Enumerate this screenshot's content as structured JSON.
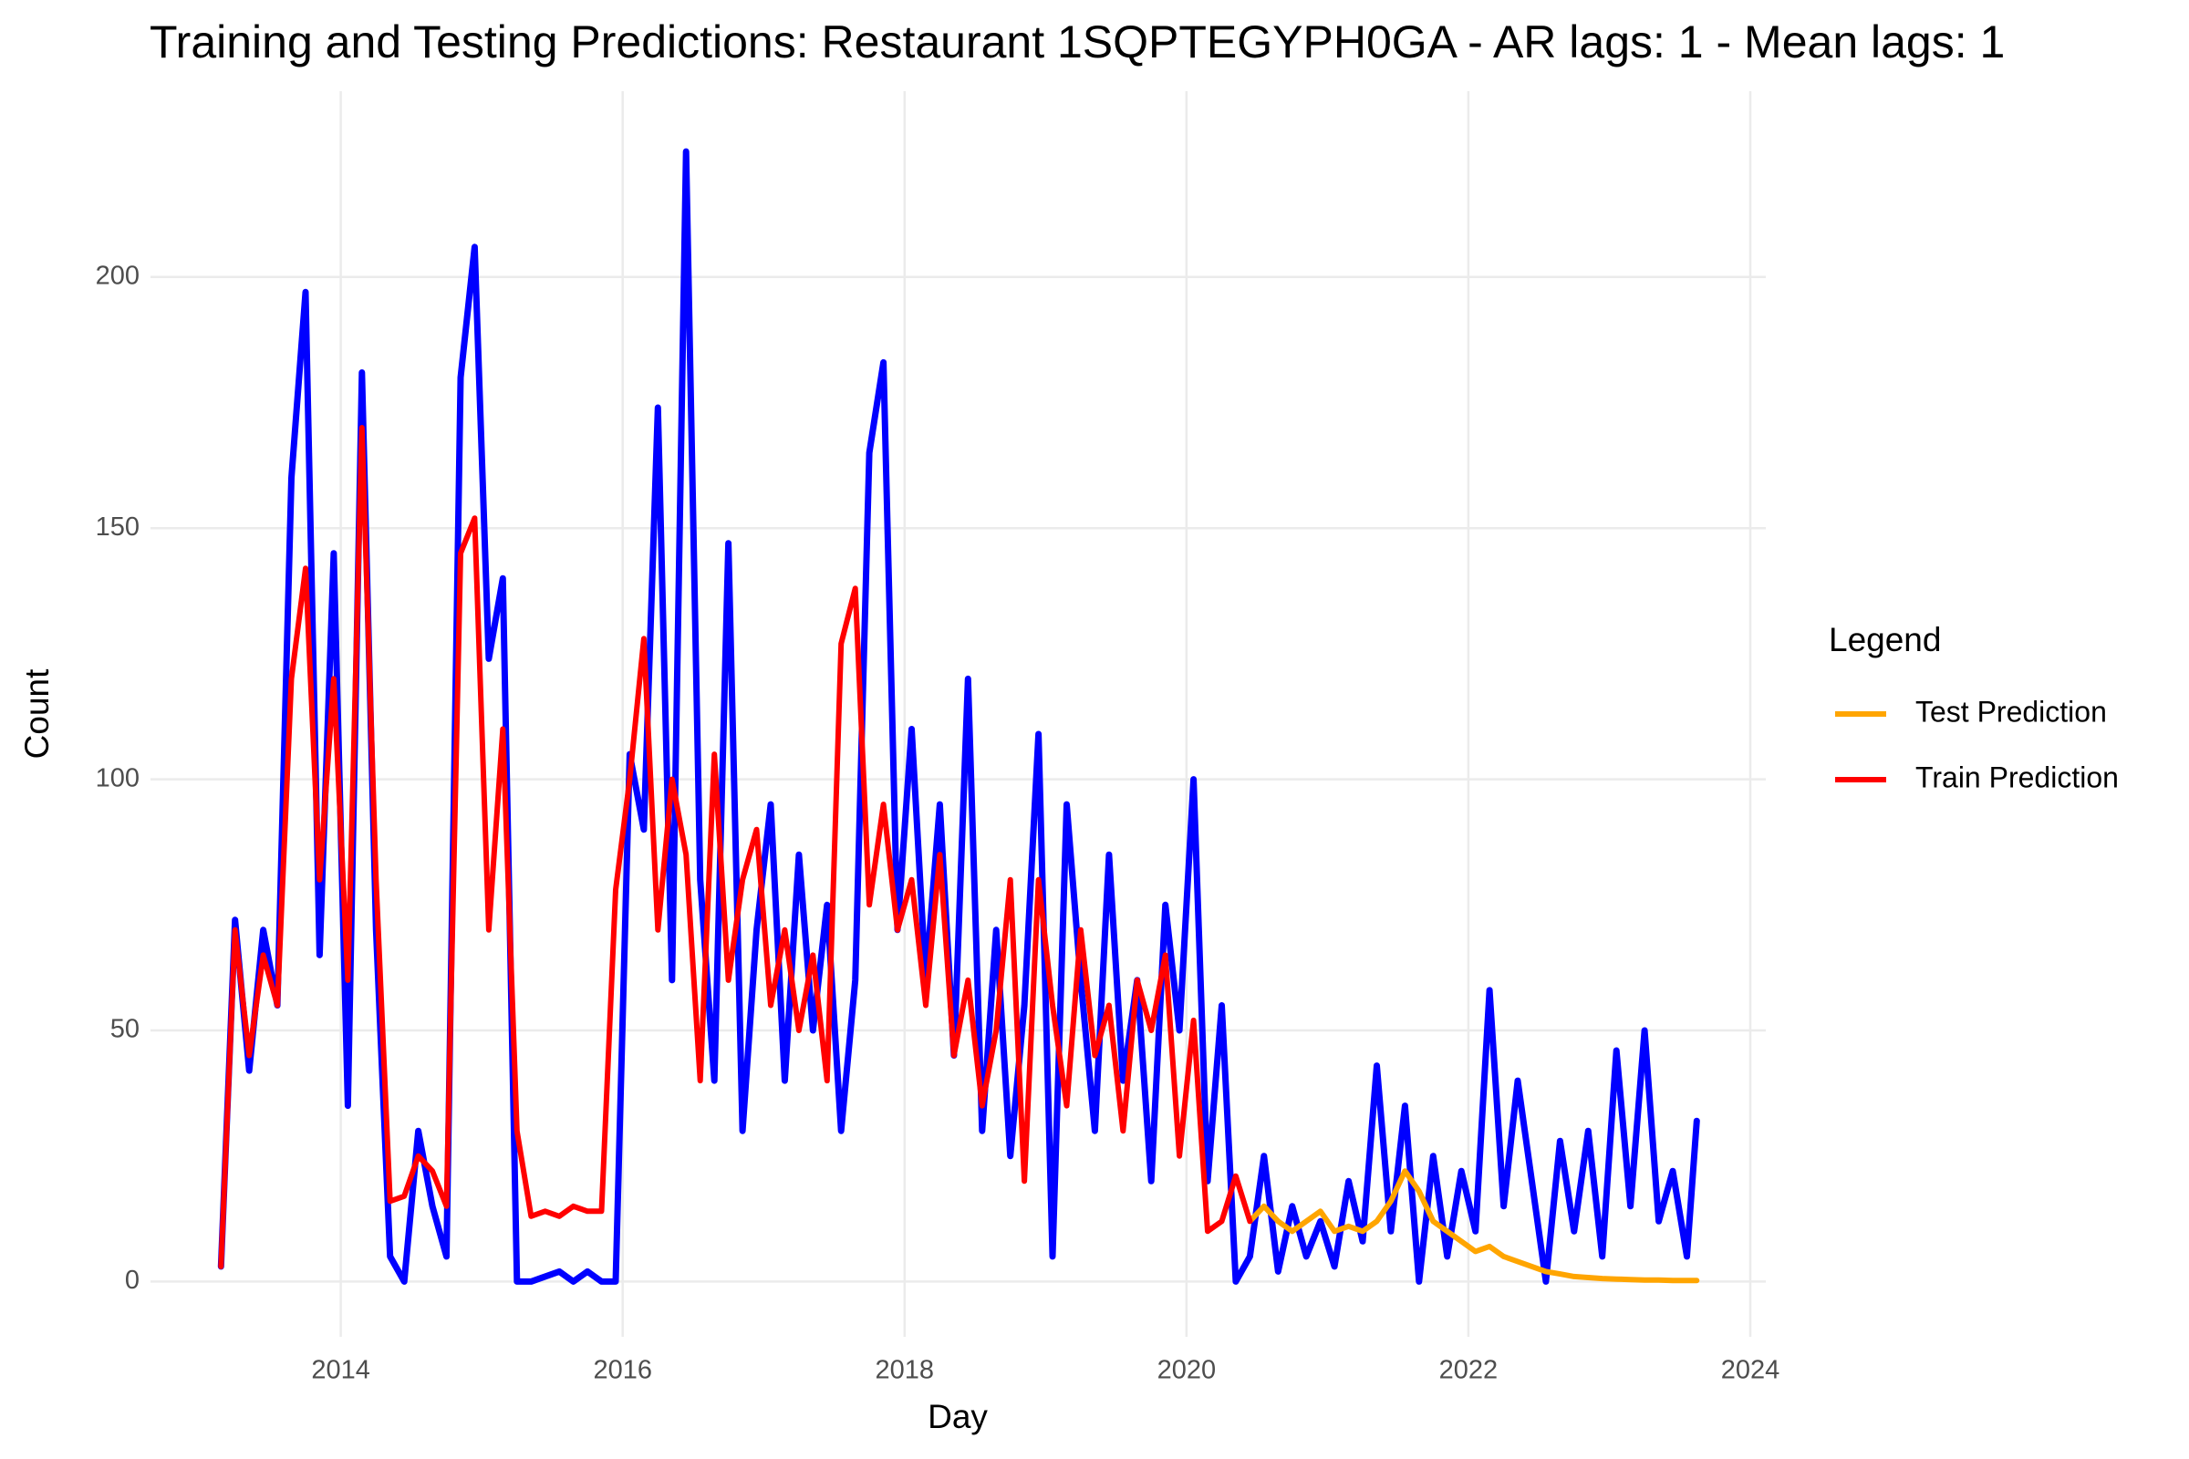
{
  "chart_data": {
    "type": "line",
    "title": "Training and Testing Predictions: Restaurant 1SQPTEGYPH0GA - AR lags: 1 - Mean lags: 1",
    "x_label": "Day",
    "y_label": "Count",
    "legend_title": "Legend",
    "legend_position": "right",
    "grid": true,
    "xlim": [
      2012.65,
      2024.11
    ],
    "xticks": [
      2014,
      2016,
      2018,
      2020,
      2022,
      2024
    ],
    "ylim": [
      -11,
      237
    ],
    "yticks": [
      0,
      50,
      100,
      150,
      200
    ],
    "series": [
      {
        "color": "#0000ff",
        "x": [
          2013.15,
          2013.25,
          2013.35,
          2013.45,
          2013.55,
          2013.65,
          2013.75,
          2013.85,
          2013.95,
          2014.05,
          2014.15,
          2014.25,
          2014.35,
          2014.45,
          2014.55,
          2014.65,
          2014.75,
          2014.85,
          2014.95,
          2015.05,
          2015.15,
          2015.25,
          2015.35,
          2015.45,
          2015.55,
          2015.65,
          2015.75,
          2015.85,
          2015.95,
          2016.05,
          2016.15,
          2016.25,
          2016.35,
          2016.45,
          2016.55,
          2016.65,
          2016.75,
          2016.85,
          2016.95,
          2017.05,
          2017.15,
          2017.25,
          2017.35,
          2017.45,
          2017.55,
          2017.65,
          2017.75,
          2017.85,
          2017.95,
          2018.05,
          2018.15,
          2018.25,
          2018.35,
          2018.45,
          2018.55,
          2018.65,
          2018.75,
          2018.85,
          2018.95,
          2019.05,
          2019.15,
          2019.25,
          2019.35,
          2019.45,
          2019.55,
          2019.65,
          2019.75,
          2019.85,
          2019.95,
          2020.05,
          2020.15,
          2020.25,
          2020.35,
          2020.45,
          2020.55,
          2020.65,
          2020.75,
          2020.85,
          2020.95,
          2021.05,
          2021.15,
          2021.25,
          2021.35,
          2021.45,
          2021.55,
          2021.65,
          2021.75,
          2021.85,
          2021.95,
          2022.05,
          2022.15,
          2022.25,
          2022.35,
          2022.45,
          2022.55,
          2022.65,
          2022.75,
          2022.85,
          2022.95,
          2023.05,
          2023.15,
          2023.25,
          2023.35,
          2023.45,
          2023.55,
          2023.62
        ],
        "values": [
          3,
          72,
          42,
          70,
          55,
          160,
          197,
          65,
          145,
          35,
          181,
          70,
          5,
          0,
          30,
          15,
          5,
          180,
          206,
          124,
          140,
          0,
          0,
          1,
          2,
          0,
          2,
          0,
          0,
          105,
          90,
          174,
          60,
          225,
          80,
          40,
          147,
          30,
          70,
          95,
          40,
          85,
          50,
          75,
          30,
          60,
          165,
          183,
          70,
          110,
          60,
          95,
          45,
          120,
          30,
          70,
          25,
          55,
          109,
          5,
          95,
          60,
          30,
          85,
          40,
          60,
          20,
          75,
          50,
          100,
          20,
          55,
          0,
          5,
          25,
          2,
          15,
          5,
          12,
          3,
          20,
          8,
          43,
          10,
          35,
          0,
          25,
          5,
          22,
          10,
          58,
          15,
          40,
          20,
          0,
          28,
          10,
          30,
          5,
          46,
          15,
          50,
          12,
          22,
          5,
          32
        ]
      },
      {
        "name": "Test Prediction",
        "color": "#ffa500",
        "x": [
          2020.45,
          2020.55,
          2020.65,
          2020.75,
          2020.85,
          2020.95,
          2021.05,
          2021.15,
          2021.25,
          2021.35,
          2021.45,
          2021.55,
          2021.65,
          2021.75,
          2021.85,
          2021.95,
          2022.05,
          2022.15,
          2022.25,
          2022.35,
          2022.45,
          2022.55,
          2022.65,
          2022.75,
          2022.85,
          2022.95,
          2023.05,
          2023.15,
          2023.25,
          2023.35,
          2023.45,
          2023.55,
          2023.62
        ],
        "values": [
          12,
          15,
          12,
          10,
          12,
          14,
          10,
          11,
          10,
          12,
          16,
          22,
          18,
          12,
          10,
          8,
          6,
          7,
          5,
          4,
          3,
          2,
          1.5,
          1,
          0.8,
          0.6,
          0.5,
          0.4,
          0.3,
          0.3,
          0.2,
          0.2,
          0.2
        ]
      },
      {
        "name": "Train Prediction",
        "color": "#ff0000",
        "x": [
          2013.15,
          2013.25,
          2013.35,
          2013.45,
          2013.55,
          2013.65,
          2013.75,
          2013.85,
          2013.95,
          2014.05,
          2014.15,
          2014.25,
          2014.35,
          2014.45,
          2014.55,
          2014.65,
          2014.75,
          2014.85,
          2014.95,
          2015.05,
          2015.15,
          2015.25,
          2015.35,
          2015.45,
          2015.55,
          2015.65,
          2015.75,
          2015.85,
          2015.95,
          2016.05,
          2016.15,
          2016.25,
          2016.35,
          2016.45,
          2016.55,
          2016.65,
          2016.75,
          2016.85,
          2016.95,
          2017.05,
          2017.15,
          2017.25,
          2017.35,
          2017.45,
          2017.55,
          2017.65,
          2017.75,
          2017.85,
          2017.95,
          2018.05,
          2018.15,
          2018.25,
          2018.35,
          2018.45,
          2018.55,
          2018.65,
          2018.75,
          2018.85,
          2018.95,
          2019.05,
          2019.15,
          2019.25,
          2019.35,
          2019.45,
          2019.55,
          2019.65,
          2019.75,
          2019.85,
          2019.95,
          2020.05,
          2020.15,
          2020.25,
          2020.35,
          2020.45
        ],
        "values": [
          3,
          70,
          45,
          65,
          55,
          120,
          142,
          80,
          120,
          60,
          170,
          80,
          16,
          17,
          25,
          22,
          15,
          145,
          152,
          70,
          110,
          30,
          13,
          14,
          13,
          15,
          14,
          14,
          78,
          100,
          128,
          70,
          100,
          85,
          40,
          105,
          60,
          80,
          90,
          55,
          70,
          50,
          65,
          40,
          127,
          138,
          75,
          95,
          70,
          80,
          55,
          85,
          45,
          60,
          35,
          50,
          80,
          20,
          80,
          55,
          35,
          70,
          45,
          55,
          30,
          60,
          50,
          65,
          25,
          52,
          10,
          12,
          21,
          12
        ]
      }
    ]
  }
}
